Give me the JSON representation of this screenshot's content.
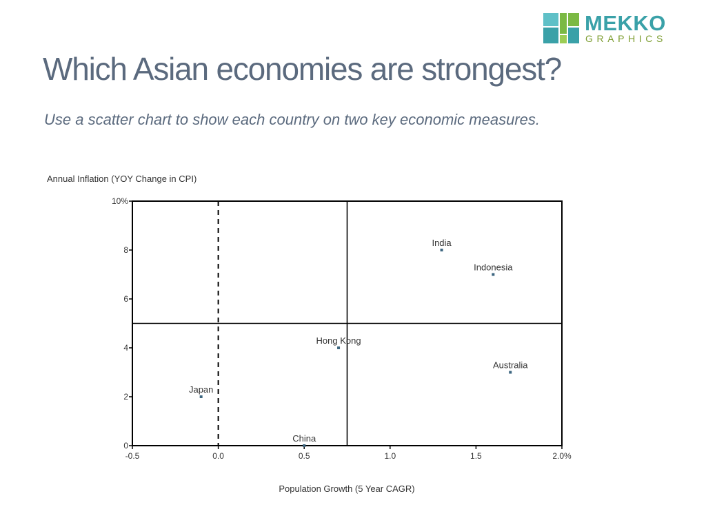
{
  "logo": {
    "word": "MEKKO",
    "sub": "GRAPHICS",
    "colors": [
      "#7bb944",
      "#3aa1a8",
      "#9ccd55",
      "#5fc0c7"
    ]
  },
  "header": {
    "title": "Which Asian economies are strongest?",
    "subtitle": "Use a scatter chart to show each country on two key economic measures."
  },
  "chart_data": {
    "type": "scatter",
    "title": "",
    "xlabel": "Population Growth (5 Year CAGR)",
    "ylabel": "Annual Inflation (YOY Change in CPI)",
    "xlim": [
      -0.5,
      2.0
    ],
    "ylim": [
      0,
      10
    ],
    "x_ticks": [
      {
        "value": -0.5,
        "label": "-0.5"
      },
      {
        "value": 0.0,
        "label": "0.0"
      },
      {
        "value": 0.5,
        "label": "0.5"
      },
      {
        "value": 1.0,
        "label": "1.0"
      },
      {
        "value": 1.5,
        "label": "1.5"
      },
      {
        "value": 2.0,
        "label": "2.0%"
      }
    ],
    "y_ticks": [
      {
        "value": 0,
        "label": "0"
      },
      {
        "value": 2,
        "label": "2"
      },
      {
        "value": 4,
        "label": "4"
      },
      {
        "value": 6,
        "label": "6"
      },
      {
        "value": 8,
        "label": "8"
      },
      {
        "value": 10,
        "label": "10%"
      }
    ],
    "points": [
      {
        "label": "India",
        "x": 1.3,
        "y": 8.0
      },
      {
        "label": "Indonesia",
        "x": 1.6,
        "y": 7.0
      },
      {
        "label": "Hong Kong",
        "x": 0.7,
        "y": 4.0
      },
      {
        "label": "Australia",
        "x": 1.7,
        "y": 3.0
      },
      {
        "label": "Japan",
        "x": -0.1,
        "y": 2.0
      },
      {
        "label": "China",
        "x": 0.5,
        "y": 0.0
      }
    ],
    "reference_lines": {
      "vertical_dashed": 0.0,
      "vertical_solid": 0.75,
      "horizontal_solid": 5.0
    },
    "grid": false,
    "legend": "none",
    "colors": {
      "marker": "#3d6680",
      "axis": "#000000",
      "text": "#333333"
    }
  }
}
